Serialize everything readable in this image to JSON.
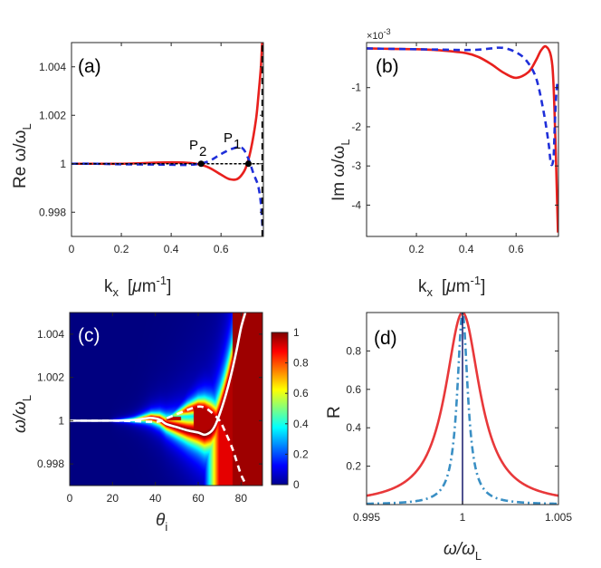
{
  "colors": {
    "red": "#e8201d",
    "blue": "#1f2fd9",
    "skyblue": "#3a8fc4",
    "lightred": "#e8383a",
    "white": "#ffffff",
    "black": "#000000",
    "navy": "#15196b"
  },
  "chart_data": [
    {
      "id": "a",
      "type": "line",
      "panel_label": "(a)",
      "xlabel": "k",
      "xlabel_sub": "x",
      "xlabel_unit_open": "[",
      "xlabel_mu": "μ",
      "xlabel_unit": "m",
      "xlabel_sup": "-1",
      "xlabel_unit_close": "]",
      "ylabel": "Re ω/ω",
      "ylabel_sub": "L",
      "xlim": [
        0,
        0.77
      ],
      "ylim": [
        0.997,
        1.005
      ],
      "xticks": [
        0,
        0.2,
        0.4,
        0.6
      ],
      "xtick_labels": [
        "0",
        "0.2",
        "0.4",
        "0.6"
      ],
      "yticks": [
        0.998,
        1,
        1.002,
        1.004
      ],
      "ytick_labels": [
        "0.998",
        "1",
        "1.002",
        "1.004"
      ],
      "annotations": [
        {
          "text": "P",
          "sub": "2",
          "x": 0.52,
          "y": 1.0
        },
        {
          "text": "P",
          "sub": "1",
          "x": 0.71,
          "y": 1.0
        }
      ],
      "series": [
        {
          "name": "red solid",
          "style": "solid",
          "color": "red",
          "x": [
            0,
            0.1,
            0.2,
            0.3,
            0.35,
            0.4,
            0.45,
            0.5,
            0.55,
            0.6,
            0.63,
            0.66,
            0.68,
            0.7,
            0.72,
            0.74,
            0.75,
            0.76,
            0.765
          ],
          "y": [
            1.0,
            1.0,
            1.0,
            1.00003,
            1.00005,
            1.00006,
            1.00005,
            1.0,
            0.99985,
            0.99955,
            0.99938,
            0.99935,
            0.9995,
            0.99985,
            1.0006,
            1.0018,
            1.0028,
            1.004,
            1.005
          ]
        },
        {
          "name": "blue dashed",
          "style": "dashed",
          "color": "blue",
          "x": [
            0,
            0.1,
            0.2,
            0.3,
            0.4,
            0.45,
            0.5,
            0.55,
            0.6,
            0.64,
            0.67,
            0.69,
            0.71,
            0.73,
            0.74,
            0.75,
            0.76,
            0.768
          ],
          "y": [
            1.0,
            1.0,
            0.99998,
            0.99997,
            0.99996,
            0.99995,
            0.99998,
            1.0001,
            1.0004,
            1.0006,
            1.00068,
            1.0006,
            1.0002,
            0.9996,
            0.99935,
            0.99905,
            0.99835,
            0.9971
          ]
        },
        {
          "name": "black dotted",
          "style": "dotted",
          "color": "black",
          "x": [
            0,
            0.77
          ],
          "y": [
            1.0,
            1.0
          ]
        },
        {
          "name": "black dashed vertical",
          "style": "dashed",
          "color": "black",
          "x": [
            0.765,
            0.765
          ],
          "y": [
            0.997,
            1.005
          ]
        }
      ],
      "points": [
        {
          "x": 0.52,
          "y": 1.0
        },
        {
          "x": 0.71,
          "y": 1.0
        }
      ]
    },
    {
      "id": "b",
      "type": "line",
      "panel_label": "(b)",
      "xlabel": "k",
      "xlabel_sub": "x",
      "xlabel_unit_open": "[",
      "xlabel_mu": "μ",
      "xlabel_unit": "m",
      "xlabel_sup": "-1",
      "xlabel_unit_close": "]",
      "ylabel": "Im ω/ω",
      "ylabel_sub": "L",
      "exponent": "×10",
      "exponent_sup": "-3",
      "xlim": [
        0,
        0.77
      ],
      "ylim": [
        -4.8,
        0.15
      ],
      "xticks": [
        0.2,
        0.4,
        0.6
      ],
      "xtick_labels": [
        "0.2",
        "0.4",
        "0.6"
      ],
      "yticks": [
        -4,
        -3,
        -2,
        -1
      ],
      "ytick_labels": [
        "-4",
        "-3",
        "-2",
        "-1"
      ],
      "series": [
        {
          "name": "red solid",
          "style": "solid",
          "color": "red",
          "x": [
            0,
            0.1,
            0.2,
            0.3,
            0.4,
            0.45,
            0.5,
            0.55,
            0.6,
            0.65,
            0.68,
            0.7,
            0.72,
            0.74,
            0.75,
            0.76,
            0.765,
            0.768
          ],
          "y": [
            0,
            -0.01,
            -0.02,
            -0.05,
            -0.12,
            -0.22,
            -0.4,
            -0.62,
            -0.75,
            -0.6,
            -0.3,
            -0.05,
            0.05,
            -0.2,
            -0.9,
            -2.8,
            -4.0,
            -4.7
          ]
        },
        {
          "name": "blue dashed",
          "style": "dashed",
          "color": "blue",
          "x": [
            0,
            0.1,
            0.2,
            0.3,
            0.4,
            0.45,
            0.5,
            0.53,
            0.56,
            0.6,
            0.64,
            0.68,
            0.71,
            0.73,
            0.74,
            0.75,
            0.755,
            0.76,
            0.765
          ],
          "y": [
            0,
            -0.01,
            -0.02,
            -0.03,
            -0.04,
            -0.03,
            0.0,
            0.02,
            0.0,
            -0.1,
            -0.3,
            -0.75,
            -1.6,
            -2.4,
            -2.95,
            -2.8,
            -2.0,
            -1.3,
            -0.9
          ]
        }
      ]
    },
    {
      "id": "c",
      "type": "heatmap",
      "panel_label": "(c)",
      "xlabel": "θ",
      "xlabel_sub": "i",
      "ylabel": "ω/ω",
      "ylabel_sub": "L",
      "xlim": [
        0,
        90
      ],
      "ylim": [
        0.997,
        1.005
      ],
      "xticks": [
        0,
        20,
        40,
        60,
        80
      ],
      "xtick_labels": [
        "0",
        "20",
        "40",
        "60",
        "80"
      ],
      "yticks": [
        0.998,
        1,
        1.002,
        1.004
      ],
      "ytick_labels": [
        "0.998",
        "1",
        "1.002",
        "1.004"
      ],
      "colorbar": {
        "ticks": [
          0,
          0.2,
          0.4,
          0.6,
          0.8,
          1
        ],
        "tick_labels": [
          "0",
          "0.2",
          "0.4",
          "0.6",
          "0.8",
          "1"
        ],
        "colormap": "jet"
      },
      "series": [
        {
          "name": "white solid",
          "style": "solid",
          "color": "white",
          "x": [
            0,
            20,
            30,
            35,
            38,
            42,
            45,
            50,
            55,
            60,
            63,
            66,
            68,
            70,
            72,
            74,
            76,
            78,
            80,
            82
          ],
          "y": [
            1.0,
            1.0,
            1.00003,
            1.0001,
            1.00013,
            1.00005,
            0.99985,
            0.9997,
            0.99955,
            0.99945,
            0.99935,
            0.9995,
            0.9998,
            1.0003,
            1.0009,
            1.0016,
            1.0024,
            1.0033,
            1.0043,
            1.005
          ]
        },
        {
          "name": "white dashed",
          "style": "dashed",
          "color": "white",
          "x": [
            0,
            20,
            30,
            38,
            42,
            45,
            50,
            55,
            60,
            63,
            66,
            70,
            73,
            76,
            78,
            80,
            82
          ],
          "y": [
            1.0,
            1.0,
            0.99998,
            0.99995,
            0.99997,
            1.0001,
            1.0003,
            1.0005,
            1.00065,
            1.0006,
            1.0004,
            1.0,
            0.9994,
            0.9987,
            0.9981,
            0.9975,
            0.9971
          ]
        }
      ]
    },
    {
      "id": "d",
      "type": "line",
      "panel_label": "(d)",
      "xlabel": "ω/ω",
      "xlabel_sub": "L",
      "ylabel": "R",
      "xlim": [
        0.995,
        1.005
      ],
      "ylim": [
        0.0,
        1.0
      ],
      "xticks": [
        0.995,
        1,
        1.005
      ],
      "xtick_labels": [
        "0.995",
        "1",
        "1.005"
      ],
      "yticks": [
        0.2,
        0.4,
        0.6,
        0.8
      ],
      "ytick_labels": [
        "0.2",
        "0.4",
        "0.6",
        "0.8"
      ],
      "series": [
        {
          "name": "red solid Lorentzian",
          "style": "solid",
          "color": "lightred",
          "model": "lorentzian",
          "center": 1.0,
          "hwhm": 0.0011,
          "peak": 1.0
        },
        {
          "name": "blue dash-dot Lorentzian",
          "style": "dashdot",
          "color": "skyblue",
          "model": "lorentzian",
          "center": 1.0,
          "hwhm": 0.00033,
          "peak": 1.0
        },
        {
          "name": "navy vertical",
          "style": "solid",
          "color": "navy",
          "x": [
            1.0,
            1.0
          ],
          "y": [
            0.0,
            1.0
          ]
        }
      ]
    }
  ]
}
